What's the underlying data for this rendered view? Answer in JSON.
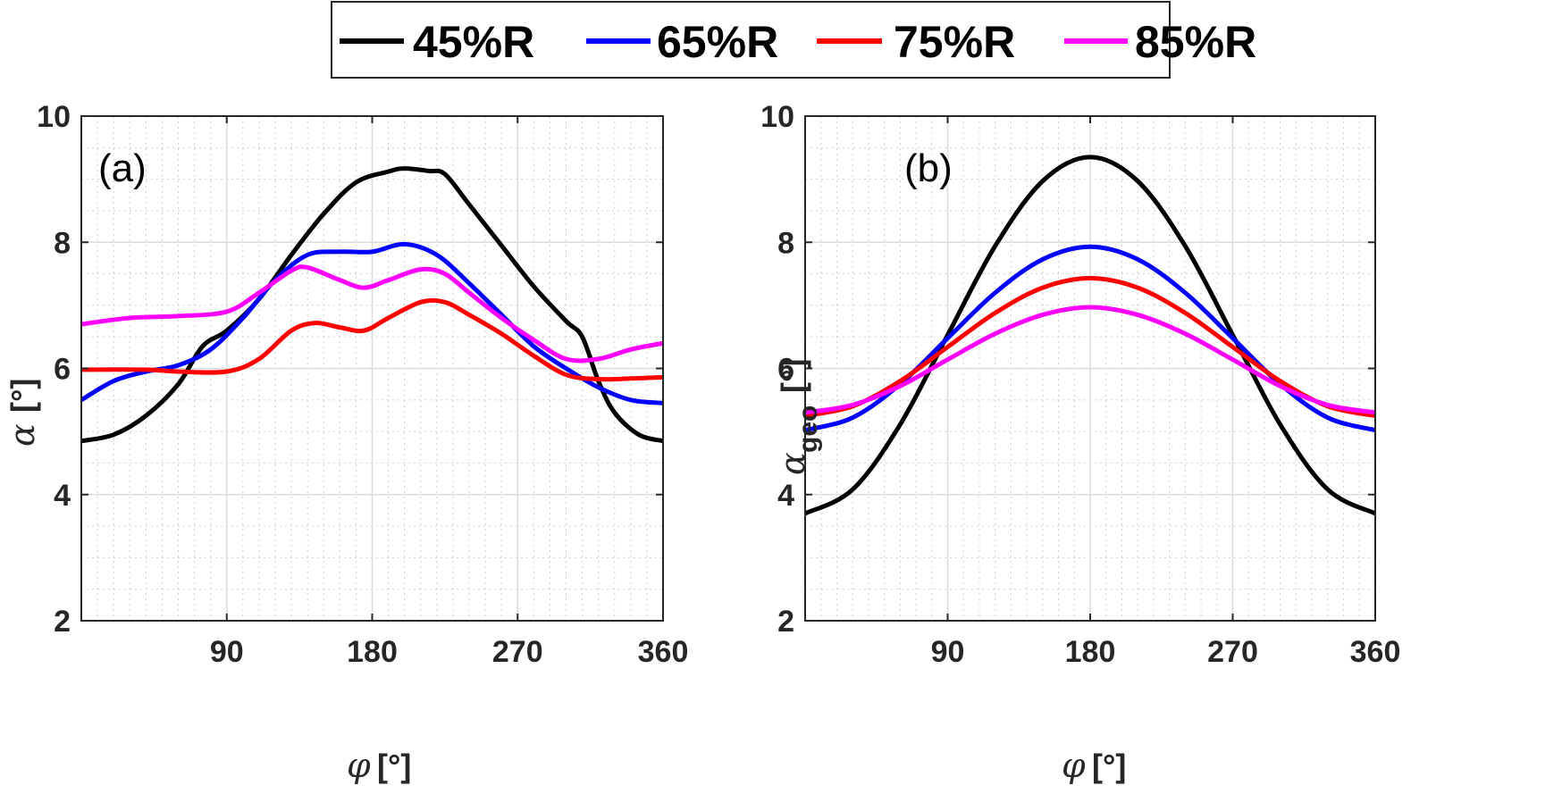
{
  "legend": {
    "entries": [
      {
        "label": "45%R",
        "color": "#000000"
      },
      {
        "label": "65%R",
        "color": "#0000ff"
      },
      {
        "label": "75%R",
        "color": "#ff0000"
      },
      {
        "label": "85%R",
        "color": "#ff00ff"
      }
    ]
  },
  "chart_data": [
    {
      "type": "line",
      "panel_label": "(a)",
      "xlabel_symbol": "φ",
      "xlabel_unit": "[°]",
      "ylabel_symbol": "α",
      "ylabel_sub": "",
      "ylabel_unit": "[°]",
      "xlim": [
        0,
        360
      ],
      "ylim": [
        2,
        10
      ],
      "xticks": [
        90,
        180,
        270,
        360
      ],
      "yticks": [
        2,
        4,
        6,
        8,
        10
      ],
      "grid": true,
      "minor_grid": true,
      "series": [
        {
          "name": "45%R",
          "color": "#000000",
          "x": [
            0,
            20,
            40,
            60,
            75,
            90,
            110,
            130,
            150,
            170,
            190,
            200,
            215,
            225,
            240,
            260,
            280,
            300,
            310,
            320,
            330,
            345,
            360
          ],
          "y": [
            4.85,
            4.95,
            5.25,
            5.75,
            6.35,
            6.6,
            7.1,
            7.8,
            8.45,
            8.95,
            9.12,
            9.17,
            9.13,
            9.08,
            8.6,
            7.95,
            7.3,
            6.75,
            6.5,
            5.8,
            5.3,
            4.95,
            4.85
          ]
        },
        {
          "name": "65%R",
          "color": "#0000ff",
          "x": [
            0,
            20,
            40,
            60,
            80,
            100,
            120,
            140,
            160,
            180,
            200,
            220,
            240,
            260,
            280,
            300,
            320,
            340,
            360
          ],
          "y": [
            5.5,
            5.8,
            5.95,
            6.05,
            6.3,
            6.8,
            7.4,
            7.8,
            7.85,
            7.85,
            7.97,
            7.8,
            7.35,
            6.85,
            6.35,
            6.0,
            5.7,
            5.5,
            5.45
          ]
        },
        {
          "name": "75%R",
          "color": "#ff0000",
          "x": [
            0,
            40,
            60,
            90,
            110,
            130,
            145,
            160,
            175,
            190,
            210,
            225,
            240,
            260,
            280,
            300,
            320,
            340,
            360
          ],
          "y": [
            5.98,
            5.98,
            5.95,
            5.95,
            6.15,
            6.6,
            6.72,
            6.65,
            6.6,
            6.8,
            7.05,
            7.05,
            6.85,
            6.55,
            6.2,
            5.9,
            5.83,
            5.84,
            5.86
          ]
        },
        {
          "name": "85%R",
          "color": "#ff00ff",
          "x": [
            0,
            30,
            60,
            90,
            110,
            130,
            140,
            160,
            175,
            190,
            210,
            225,
            240,
            260,
            280,
            300,
            320,
            340,
            360
          ],
          "y": [
            6.7,
            6.8,
            6.83,
            6.9,
            7.2,
            7.55,
            7.6,
            7.4,
            7.28,
            7.4,
            7.57,
            7.5,
            7.2,
            6.8,
            6.45,
            6.15,
            6.15,
            6.3,
            6.4
          ]
        }
      ]
    },
    {
      "type": "line",
      "panel_label": "(b)",
      "xlabel_symbol": "φ",
      "xlabel_unit": "[°]",
      "ylabel_symbol": "α",
      "ylabel_sub": "geo",
      "ylabel_unit": "[°]",
      "xlim": [
        0,
        360
      ],
      "ylim": [
        2,
        10
      ],
      "xticks": [
        90,
        180,
        270,
        360
      ],
      "yticks": [
        2,
        4,
        6,
        8,
        10
      ],
      "grid": true,
      "minor_grid": true,
      "series": [
        {
          "name": "45%R",
          "color": "#000000",
          "x": [
            0,
            30,
            60,
            90,
            120,
            150,
            180,
            210,
            240,
            270,
            300,
            330,
            360
          ],
          "y": [
            3.7,
            4.08,
            5.11,
            6.53,
            7.94,
            8.97,
            9.35,
            8.97,
            7.94,
            6.53,
            5.11,
            4.08,
            3.7
          ]
        },
        {
          "name": "65%R",
          "color": "#0000ff",
          "x": [
            0,
            30,
            60,
            90,
            120,
            150,
            180,
            210,
            240,
            270,
            300,
            330,
            360
          ],
          "y": [
            5.02,
            5.22,
            5.75,
            6.48,
            7.2,
            7.73,
            7.93,
            7.73,
            7.2,
            6.48,
            5.75,
            5.22,
            5.02
          ]
        },
        {
          "name": "75%R",
          "color": "#ff0000",
          "x": [
            0,
            30,
            60,
            90,
            120,
            150,
            180,
            210,
            240,
            270,
            300,
            330,
            360
          ],
          "y": [
            5.25,
            5.4,
            5.8,
            6.34,
            6.88,
            7.28,
            7.43,
            7.28,
            6.88,
            6.34,
            5.8,
            5.4,
            5.25
          ]
        },
        {
          "name": "85%R",
          "color": "#ff00ff",
          "x": [
            0,
            30,
            60,
            90,
            120,
            150,
            180,
            210,
            240,
            270,
            300,
            330,
            360
          ],
          "y": [
            5.3,
            5.42,
            5.72,
            6.14,
            6.55,
            6.85,
            6.97,
            6.85,
            6.55,
            6.14,
            5.72,
            5.42,
            5.3
          ]
        }
      ]
    }
  ]
}
